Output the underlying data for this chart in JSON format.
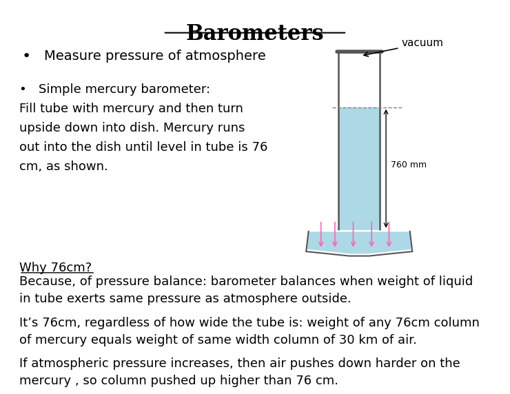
{
  "title": "Barometers",
  "background_color": "#ffffff",
  "title_fontsize": 22,
  "bullet1": "Measure pressure of atmosphere",
  "bullet1_fontsize": 14,
  "bullet2_line1": "•   Simple mercury barometer:",
  "bullet2_line2": "Fill tube with mercury and then turn",
  "bullet2_line3": "upside down into dish. Mercury runs",
  "bullet2_line4": "out into the dish until level in tube is 76",
  "bullet2_line5": "cm, as shown.",
  "body_fontsize": 13,
  "why_heading": "Why 76cm?",
  "why_body": "Because, of pressure balance: barometer balances when weight of liquid\nin tube exerts same pressure as atmosphere outside.",
  "para2": "It’s 76cm, regardless of how wide the tube is: weight of any 76cm column\nof mercury equals weight of same width column of 30 km of air.",
  "para3": "If atmospheric pressure increases, then air pushes down harder on the\nmercury , so column pushed up higher than 76 cm.",
  "body_fontsize2": 13,
  "vacuum_label": "vacuum",
  "measurement_label": "760 mm",
  "tube_fill_color": "#add8e6",
  "arrow_color": "#ff69b4",
  "tube_outline_color": "#555555"
}
